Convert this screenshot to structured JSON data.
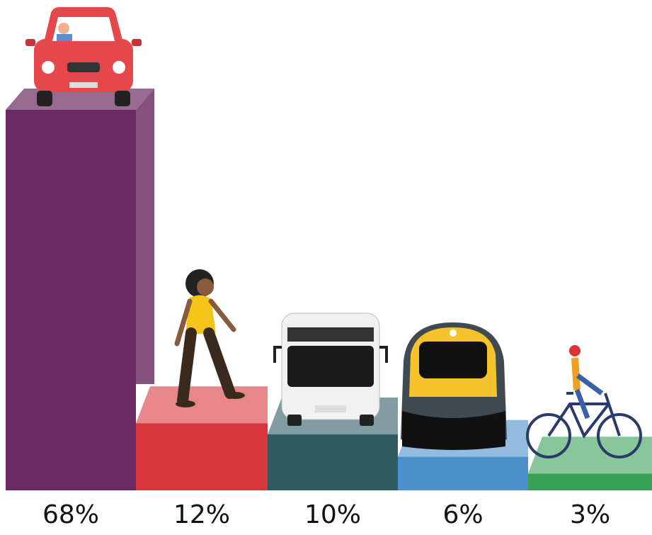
{
  "chart_data": {
    "type": "bar",
    "categories": [
      null,
      null,
      null,
      null,
      null
    ],
    "values": [
      68,
      12,
      10,
      6,
      3
    ],
    "value_labels": [
      "68%",
      "12%",
      "10%",
      "6%",
      "3%"
    ],
    "colors": [
      "#6b2a62",
      "#d9373b",
      "#2f5b64",
      "#4b90cc",
      "#38a155"
    ]
  }
}
